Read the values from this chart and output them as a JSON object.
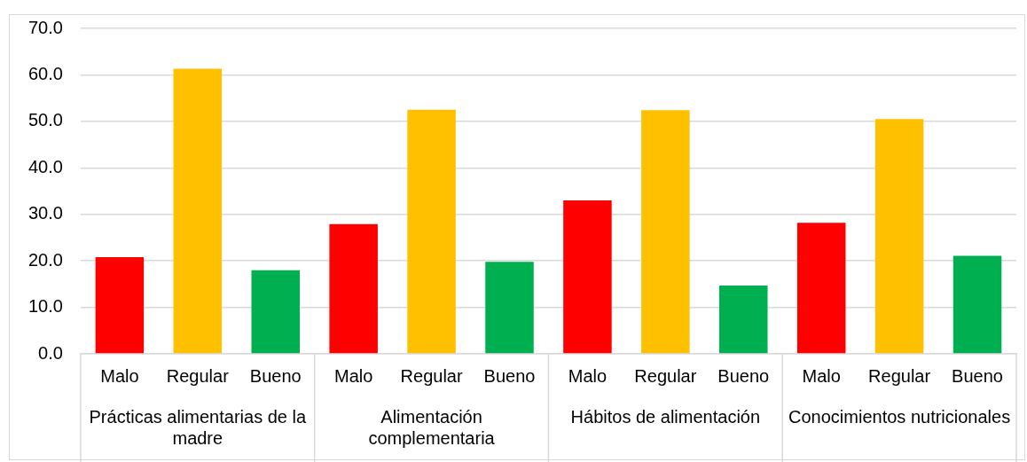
{
  "chart_data": {
    "type": "bar",
    "categories": [
      "Malo",
      "Regular",
      "Bueno",
      "Malo",
      "Regular",
      "Bueno",
      "Malo",
      "Regular",
      "Bueno",
      "Malo",
      "Regular",
      "Bueno"
    ],
    "values": [
      20.8,
      61.3,
      18.0,
      27.9,
      52.5,
      19.8,
      33.0,
      52.4,
      14.7,
      28.2,
      50.5,
      21.1
    ],
    "colors": [
      "#ff0000",
      "#ffc000",
      "#00b050",
      "#ff0000",
      "#ffc000",
      "#00b050",
      "#ff0000",
      "#ffc000",
      "#00b050",
      "#ff0000",
      "#ffc000",
      "#00b050"
    ],
    "ylim": [
      0,
      70
    ],
    "yticks": [
      {
        "value": 0,
        "label": "0.0"
      },
      {
        "value": 10,
        "label": "10.0"
      },
      {
        "value": 20,
        "label": "20.0"
      },
      {
        "value": 30,
        "label": "30.0"
      },
      {
        "value": 40,
        "label": "40.0"
      },
      {
        "value": 50,
        "label": "50.0"
      },
      {
        "value": 60,
        "label": "60.0"
      },
      {
        "value": 70,
        "label": "70.0"
      }
    ],
    "grid": "y",
    "legend": false,
    "annotations": [
      "Prácticas alimentarias de la madre",
      "Alimentación complementaria",
      "Hábitos de alimentación",
      "Conocimientos nutricionales"
    ]
  }
}
